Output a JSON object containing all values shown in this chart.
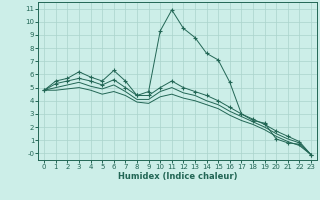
{
  "xlabel": "Humidex (Indice chaleur)",
  "ylabel": "",
  "background_color": "#cceee8",
  "grid_color": "#aad4cc",
  "line_color": "#226655",
  "xlim": [
    -0.5,
    23.5
  ],
  "ylim": [
    -0.5,
    11.5
  ],
  "xticks": [
    0,
    1,
    2,
    3,
    4,
    5,
    6,
    7,
    8,
    9,
    10,
    11,
    12,
    13,
    14,
    15,
    16,
    17,
    18,
    19,
    20,
    21,
    22,
    23
  ],
  "yticks": [
    0,
    1,
    2,
    3,
    4,
    5,
    6,
    7,
    8,
    9,
    10,
    11
  ],
  "ytick_labels": [
    "-0",
    "1",
    "2",
    "3",
    "4",
    "5",
    "6",
    "7",
    "8",
    "9",
    "10",
    "11"
  ],
  "series": [
    {
      "x": [
        0,
        1,
        2,
        3,
        4,
        5,
        6,
        7,
        8,
        9,
        10,
        11,
        12,
        13,
        14,
        15,
        16,
        17,
        18,
        19,
        20,
        21,
        22,
        23
      ],
      "y": [
        4.8,
        5.5,
        5.7,
        6.2,
        5.8,
        5.5,
        6.3,
        5.5,
        4.4,
        4.7,
        9.3,
        10.9,
        9.5,
        8.8,
        7.6,
        7.1,
        5.4,
        3.0,
        2.5,
        2.3,
        1.1,
        0.8,
        0.7,
        -0.1
      ],
      "marker": "+"
    },
    {
      "x": [
        0,
        1,
        2,
        3,
        4,
        5,
        6,
        7,
        8,
        9,
        10,
        11,
        12,
        13,
        14,
        15,
        16,
        17,
        18,
        19,
        20,
        21,
        22,
        23
      ],
      "y": [
        4.8,
        5.3,
        5.5,
        5.7,
        5.5,
        5.2,
        5.6,
        5.0,
        4.4,
        4.4,
        5.0,
        5.5,
        5.0,
        4.7,
        4.4,
        4.0,
        3.5,
        3.0,
        2.6,
        2.2,
        1.7,
        1.3,
        0.9,
        -0.1
      ],
      "marker": "+"
    },
    {
      "x": [
        0,
        1,
        2,
        3,
        4,
        5,
        6,
        7,
        8,
        9,
        10,
        11,
        12,
        13,
        14,
        15,
        16,
        17,
        18,
        19,
        20,
        21,
        22,
        23
      ],
      "y": [
        4.8,
        5.0,
        5.2,
        5.4,
        5.1,
        4.9,
        5.2,
        4.7,
        4.1,
        4.1,
        4.7,
        5.0,
        4.6,
        4.4,
        4.0,
        3.7,
        3.2,
        2.8,
        2.4,
        2.0,
        1.5,
        1.1,
        0.8,
        -0.1
      ],
      "marker": null
    },
    {
      "x": [
        0,
        1,
        2,
        3,
        4,
        5,
        6,
        7,
        8,
        9,
        10,
        11,
        12,
        13,
        14,
        15,
        16,
        17,
        18,
        19,
        20,
        21,
        22,
        23
      ],
      "y": [
        4.8,
        4.8,
        4.9,
        5.0,
        4.8,
        4.5,
        4.7,
        4.4,
        3.9,
        3.8,
        4.3,
        4.5,
        4.2,
        4.0,
        3.7,
        3.4,
        2.9,
        2.5,
        2.2,
        1.8,
        1.3,
        0.9,
        0.6,
        -0.1
      ],
      "marker": null
    }
  ]
}
